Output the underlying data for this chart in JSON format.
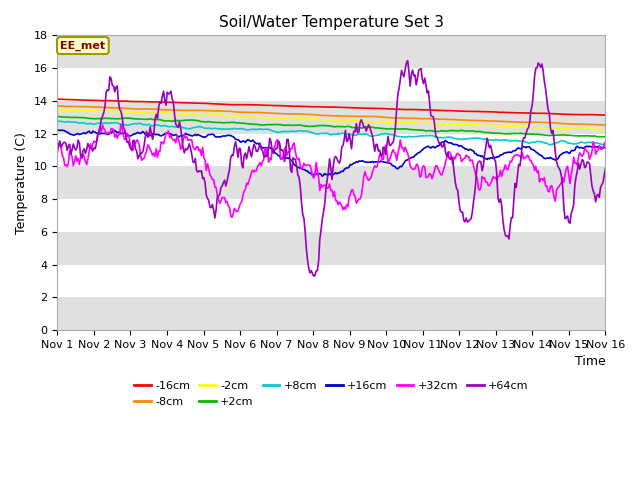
{
  "title": "Soil/Water Temperature Set 3",
  "xlabel": "Time",
  "ylabel": "Temperature (C)",
  "ylim": [
    0,
    18
  ],
  "yticks": [
    0,
    2,
    4,
    6,
    8,
    10,
    12,
    14,
    16,
    18
  ],
  "xlim": [
    0,
    15
  ],
  "xtick_labels": [
    "Nov 1",
    "Nov 2",
    "Nov 3",
    "Nov 4",
    "Nov 5",
    "Nov 6",
    "Nov 7",
    "Nov 8",
    "Nov 9",
    "Nov 10",
    "Nov 11",
    "Nov 12",
    "Nov 13",
    "Nov 14",
    "Nov 15",
    "Nov 16"
  ],
  "series_colors": [
    "#ff0000",
    "#ff8800",
    "#ffff00",
    "#00bb00",
    "#00cccc",
    "#0000cc",
    "#ff00ff",
    "#9900bb"
  ],
  "series_labels": [
    "-16cm",
    "-8cm",
    "-2cm",
    "+2cm",
    "+8cm",
    "+16cm",
    "+32cm",
    "+64cm"
  ],
  "annotation_text": "EE_met",
  "fig_bg": "#ffffff",
  "plot_bg": "#ffffff",
  "band_color_dark": "#e0e0e0",
  "n_points": 450
}
